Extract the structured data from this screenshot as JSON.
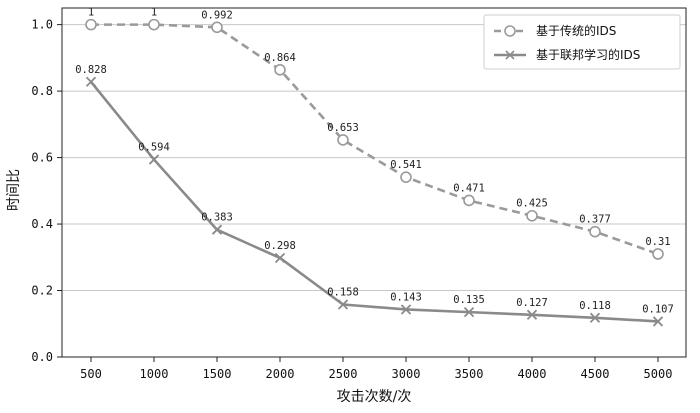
{
  "chart_data": {
    "type": "line",
    "xlabel": "攻击次数/次",
    "ylabel": "时间比",
    "x": [
      500,
      1000,
      1500,
      2000,
      2500,
      3000,
      3500,
      4000,
      4500,
      5000
    ],
    "x_tick_labels": [
      "500",
      "1000",
      "1500",
      "2000",
      "2500",
      "3000",
      "3500",
      "4000",
      "4500",
      "5000"
    ],
    "ylim": [
      0,
      1.05
    ],
    "y_ticks": [
      0,
      0.2,
      0.4,
      0.6,
      0.8,
      1.0
    ],
    "y_tick_labels": [
      "0.0",
      "0.2",
      "0.4",
      "0.6",
      "0.8",
      "1.0"
    ],
    "grid": "horizontal",
    "legend_position": "top-right",
    "series": [
      {
        "name": "基于传统的IDS",
        "style": "dashed",
        "marker": "circle",
        "color": "#9a9a9a",
        "values": [
          1,
          1,
          0.992,
          0.864,
          0.653,
          0.541,
          0.471,
          0.425,
          0.377,
          0.31
        ],
        "data_labels": [
          "1",
          "1",
          "0.992",
          "0.864",
          "0.653",
          "0.541",
          "0.471",
          "0.425",
          "0.377",
          "0.31"
        ]
      },
      {
        "name": "基于联邦学习的IDS",
        "style": "solid",
        "marker": "x",
        "color": "#8a8a8a",
        "values": [
          0.828,
          0.594,
          0.383,
          0.298,
          0.158,
          0.143,
          0.135,
          0.127,
          0.118,
          0.107
        ],
        "data_labels": [
          "0.828",
          "0.594",
          "0.383",
          "0.298",
          "0.158",
          "0.143",
          "0.135",
          "0.127",
          "0.118",
          "0.107"
        ]
      }
    ]
  }
}
